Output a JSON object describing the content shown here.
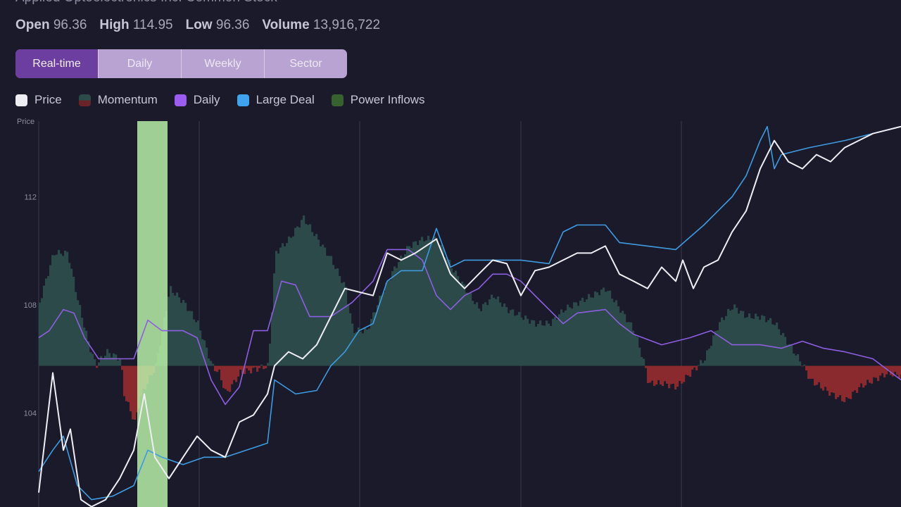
{
  "header": {
    "title": "Applied Optoelectronics Inc. Common Stock",
    "stats": [
      {
        "label": "Open",
        "value": "96.36"
      },
      {
        "label": "High",
        "value": "114.95"
      },
      {
        "label": "Low",
        "value": "96.36"
      },
      {
        "label": "Volume",
        "value": "13,916,722"
      }
    ]
  },
  "tabs": [
    {
      "label": "Real-time",
      "active": true
    },
    {
      "label": "Daily",
      "active": false
    },
    {
      "label": "Weekly",
      "active": false
    },
    {
      "label": "Sector",
      "active": false
    }
  ],
  "colors": {
    "price": "#f0eef5",
    "momentum_pos": "#2b4a49",
    "momentum_neg": "#8a2a2e",
    "daily": "#8d5fe0",
    "large_deal": "#3f9be0",
    "power_inflows": "#3c6b35",
    "highlight": "#b8f0a8"
  },
  "chart_data": {
    "type": "line",
    "ylabel": "Price",
    "yticks": [
      "104",
      "108",
      "112"
    ],
    "ylim": [
      100.5,
      114.8
    ],
    "xlim": [
      0,
      245
    ],
    "momentum_baseline": 105.75,
    "highlight_range": [
      28,
      36.6
    ],
    "gridlines_x": [
      45.6,
      91.2,
      137,
      182.6
    ],
    "legend": [
      {
        "key": "price",
        "label": "Price"
      },
      {
        "key": "momentum",
        "label": "Momentum"
      },
      {
        "key": "daily",
        "label": "Daily"
      },
      {
        "key": "large_deal",
        "label": "Large Deal"
      },
      {
        "key": "power_inflows",
        "label": "Power Inflows"
      }
    ],
    "series": [
      {
        "name": "Price",
        "key": "price",
        "points": [
          [
            0,
            101.06
          ],
          [
            4,
            105.49
          ],
          [
            7,
            102.63
          ],
          [
            9,
            103.41
          ],
          [
            12,
            100.8
          ],
          [
            15,
            100.54
          ],
          [
            19,
            100.8
          ],
          [
            23,
            101.58
          ],
          [
            27,
            102.63
          ],
          [
            30,
            104.71
          ],
          [
            33,
            102.37
          ],
          [
            37,
            101.58
          ],
          [
            41,
            102.37
          ],
          [
            45,
            103.15
          ],
          [
            49,
            102.63
          ],
          [
            53,
            102.37
          ],
          [
            57,
            103.67
          ],
          [
            61,
            103.93
          ],
          [
            65,
            104.71
          ],
          [
            67,
            105.75
          ],
          [
            71,
            106.27
          ],
          [
            75,
            106.01
          ],
          [
            79,
            106.53
          ],
          [
            83,
            107.57
          ],
          [
            87,
            108.61
          ],
          [
            91,
            108.48
          ],
          [
            95,
            108.35
          ],
          [
            99,
            109.92
          ],
          [
            103,
            109.66
          ],
          [
            107,
            109.92
          ],
          [
            113,
            110.44
          ],
          [
            117,
            109.14
          ],
          [
            121,
            108.61
          ],
          [
            125,
            109.14
          ],
          [
            129,
            109.66
          ],
          [
            133,
            109.53
          ],
          [
            137,
            108.35
          ],
          [
            141,
            109.27
          ],
          [
            145,
            109.4
          ],
          [
            149,
            109.66
          ],
          [
            153,
            109.92
          ],
          [
            157,
            109.92
          ],
          [
            161,
            110.18
          ],
          [
            165,
            109.14
          ],
          [
            169,
            108.88
          ],
          [
            173,
            108.61
          ],
          [
            177,
            109.4
          ],
          [
            181,
            108.88
          ],
          [
            183,
            109.66
          ],
          [
            186,
            108.61
          ],
          [
            189,
            109.4
          ],
          [
            193,
            109.66
          ],
          [
            197,
            110.7
          ],
          [
            201,
            111.48
          ],
          [
            205,
            113.04
          ],
          [
            209,
            114.08
          ],
          [
            213,
            113.3
          ],
          [
            217,
            113.04
          ],
          [
            221,
            113.56
          ],
          [
            225,
            113.3
          ],
          [
            229,
            113.82
          ],
          [
            233,
            114.08
          ],
          [
            237,
            114.34
          ],
          [
            241,
            114.47
          ],
          [
            245,
            114.6
          ]
        ]
      },
      {
        "name": "Large Deal",
        "key": "large_deal",
        "points": [
          [
            0,
            101.84
          ],
          [
            4,
            102.63
          ],
          [
            7,
            103.15
          ],
          [
            11,
            101.32
          ],
          [
            15,
            100.8
          ],
          [
            21,
            100.93
          ],
          [
            27,
            101.32
          ],
          [
            31,
            102.63
          ],
          [
            35,
            102.37
          ],
          [
            41,
            102.1
          ],
          [
            47,
            102.37
          ],
          [
            53,
            102.37
          ],
          [
            59,
            102.63
          ],
          [
            65,
            102.89
          ],
          [
            67,
            105.23
          ],
          [
            73,
            104.71
          ],
          [
            79,
            104.84
          ],
          [
            83,
            105.75
          ],
          [
            87,
            106.27
          ],
          [
            91,
            107.05
          ],
          [
            95,
            107.31
          ],
          [
            99,
            108.88
          ],
          [
            103,
            109.27
          ],
          [
            109,
            109.27
          ],
          [
            113,
            110.83
          ],
          [
            117,
            109.4
          ],
          [
            121,
            109.66
          ],
          [
            129,
            109.66
          ],
          [
            137,
            109.66
          ],
          [
            145,
            109.53
          ],
          [
            149,
            110.7
          ],
          [
            153,
            110.96
          ],
          [
            161,
            110.96
          ],
          [
            165,
            110.31
          ],
          [
            173,
            110.18
          ],
          [
            181,
            110.05
          ],
          [
            189,
            110.96
          ],
          [
            197,
            112.0
          ],
          [
            201,
            112.78
          ],
          [
            205,
            114.08
          ],
          [
            207,
            114.6
          ],
          [
            209,
            113.04
          ],
          [
            211,
            113.56
          ],
          [
            219,
            113.82
          ],
          [
            229,
            114.08
          ],
          [
            237,
            114.34
          ],
          [
            245,
            114.6
          ]
        ]
      },
      {
        "name": "Daily",
        "key": "daily",
        "points": [
          [
            0,
            106.79
          ],
          [
            3,
            107.05
          ],
          [
            7,
            107.83
          ],
          [
            10,
            107.7
          ],
          [
            13,
            106.79
          ],
          [
            17,
            106.01
          ],
          [
            23,
            106.01
          ],
          [
            27,
            106.01
          ],
          [
            31,
            107.44
          ],
          [
            35,
            107.05
          ],
          [
            41,
            107.05
          ],
          [
            45,
            106.79
          ],
          [
            49,
            105.23
          ],
          [
            53,
            104.32
          ],
          [
            57,
            104.97
          ],
          [
            61,
            107.05
          ],
          [
            65,
            107.05
          ],
          [
            69,
            108.88
          ],
          [
            73,
            108.74
          ],
          [
            77,
            107.57
          ],
          [
            83,
            107.57
          ],
          [
            89,
            108.09
          ],
          [
            95,
            108.88
          ],
          [
            99,
            110.05
          ],
          [
            105,
            110.05
          ],
          [
            109,
            109.66
          ],
          [
            113,
            108.35
          ],
          [
            117,
            107.83
          ],
          [
            121,
            108.35
          ],
          [
            125,
            108.61
          ],
          [
            129,
            109.14
          ],
          [
            133,
            109.14
          ],
          [
            137,
            108.88
          ],
          [
            141,
            108.35
          ],
          [
            145,
            107.83
          ],
          [
            149,
            107.31
          ],
          [
            153,
            107.7
          ],
          [
            161,
            107.83
          ],
          [
            165,
            107.31
          ],
          [
            169,
            106.92
          ],
          [
            177,
            106.53
          ],
          [
            185,
            106.79
          ],
          [
            191,
            107.05
          ],
          [
            197,
            106.53
          ],
          [
            205,
            106.53
          ],
          [
            211,
            106.4
          ],
          [
            217,
            106.66
          ],
          [
            223,
            106.4
          ],
          [
            229,
            106.27
          ],
          [
            237,
            106.01
          ],
          [
            245,
            105.23
          ]
        ]
      },
      {
        "name": "Momentum",
        "key": "momentum",
        "points": [
          [
            0,
            2.34
          ],
          [
            4,
            4.17
          ],
          [
            8,
            4.17
          ],
          [
            11,
            2.34
          ],
          [
            14,
            0.78
          ],
          [
            16,
            0
          ],
          [
            19,
            0.52
          ],
          [
            23,
            0.26
          ],
          [
            24,
            -1.04
          ],
          [
            27,
            -2.08
          ],
          [
            29,
            -1.04
          ],
          [
            33,
            0
          ],
          [
            37,
            2.86
          ],
          [
            41,
            2.34
          ],
          [
            45,
            1.56
          ],
          [
            49,
            0
          ],
          [
            51,
            -0.26
          ],
          [
            53,
            -1.04
          ],
          [
            57,
            -0.26
          ],
          [
            61,
            -0.13
          ],
          [
            65,
            0
          ],
          [
            67,
            4.17
          ],
          [
            71,
            4.69
          ],
          [
            75,
            5.47
          ],
          [
            79,
            4.69
          ],
          [
            83,
            3.91
          ],
          [
            87,
            2.86
          ],
          [
            89,
            1.3
          ],
          [
            93,
            1.3
          ],
          [
            97,
            2.6
          ],
          [
            101,
            3.65
          ],
          [
            105,
            4.43
          ],
          [
            109,
            4.69
          ],
          [
            113,
            4.69
          ],
          [
            117,
            3.65
          ],
          [
            121,
            2.86
          ],
          [
            125,
            2.08
          ],
          [
            129,
            2.6
          ],
          [
            133,
            2.08
          ],
          [
            137,
            1.82
          ],
          [
            141,
            1.56
          ],
          [
            145,
            1.56
          ],
          [
            149,
            2.08
          ],
          [
            153,
            2.34
          ],
          [
            157,
            2.6
          ],
          [
            161,
            2.86
          ],
          [
            165,
            2.08
          ],
          [
            169,
            1.3
          ],
          [
            172,
            0
          ],
          [
            173,
            -0.65
          ],
          [
            177,
            -0.65
          ],
          [
            181,
            -0.78
          ],
          [
            185,
            -0.26
          ],
          [
            187,
            0
          ],
          [
            189,
            0.26
          ],
          [
            193,
            1.56
          ],
          [
            197,
            2.21
          ],
          [
            201,
            1.82
          ],
          [
            205,
            1.82
          ],
          [
            209,
            1.56
          ],
          [
            213,
            0.78
          ],
          [
            217,
            0
          ],
          [
            219,
            -0.52
          ],
          [
            225,
            -1.04
          ],
          [
            229,
            -1.3
          ],
          [
            233,
            -0.78
          ],
          [
            237,
            -0.52
          ],
          [
            241,
            -0.26
          ],
          [
            245,
            -0.39
          ]
        ]
      }
    ]
  }
}
